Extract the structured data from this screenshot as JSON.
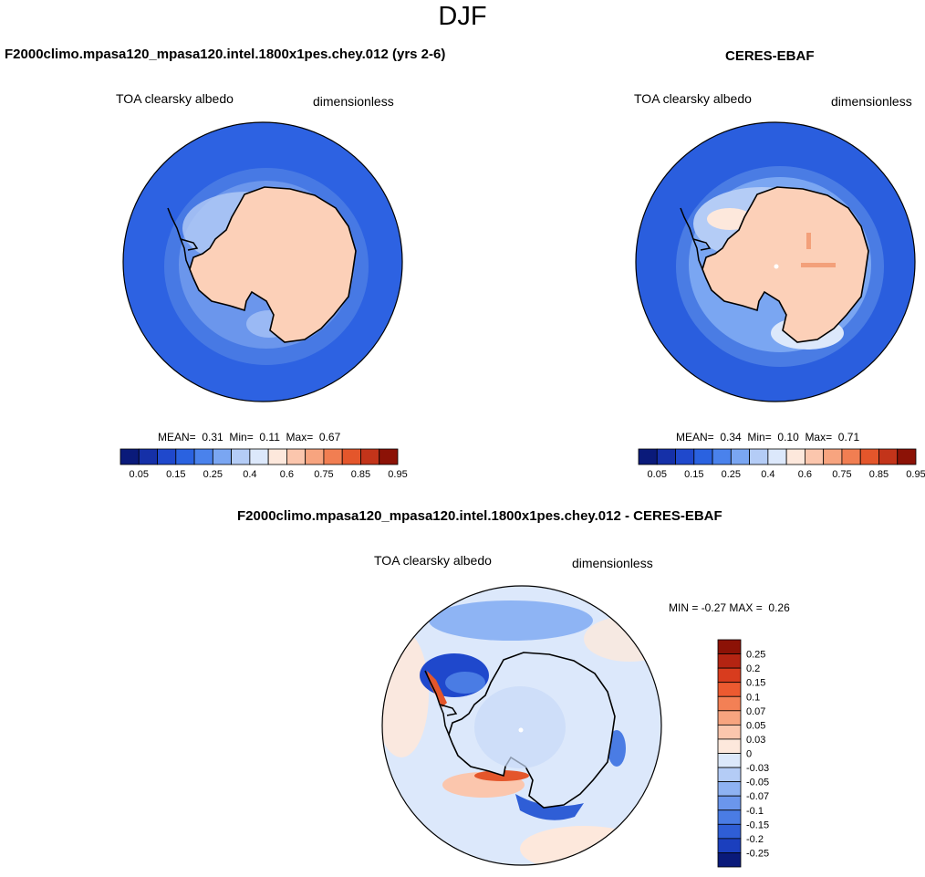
{
  "title": "DJF",
  "panels": [
    {
      "id": "model",
      "case_name": "F2000climo.mpasa120_mpasa120.intel.1800x1pes.chey.012 (yrs 2-6)",
      "variable": "TOA clearsky albedo",
      "units": "dimensionless",
      "mean_label": "MEAN=",
      "mean": "0.31",
      "min_label": "Min=",
      "min": "0.11",
      "max_label": "Max=",
      "max": "0.67"
    },
    {
      "id": "obs",
      "case_name": "CERES-EBAF",
      "variable": "TOA clearsky albedo",
      "units": "dimensionless",
      "mean_label": "MEAN=",
      "mean": "0.34",
      "min_label": "Min=",
      "min": "0.10",
      "max_label": "Max=",
      "max": "0.71"
    }
  ],
  "diff_panel": {
    "case_name": "F2000climo.mpasa120_mpasa120.intel.1800x1pes.chey.012 - CERES-EBAF",
    "variable": "TOA clearsky albedo",
    "units": "dimensionless",
    "min_label": "MIN =",
    "min": "-0.27",
    "max_label": "MAX =",
    "max": "0.26"
  },
  "colorbar_abs": {
    "colors": [
      "#0a1a7a",
      "#1530a8",
      "#1f48cc",
      "#2a62e0",
      "#4a82ec",
      "#7aa6f2",
      "#b4ccf6",
      "#dce8fb",
      "#fde8dc",
      "#fbc6ad",
      "#f7a47f",
      "#f17e52",
      "#e4562b",
      "#c3341a",
      "#8c1206"
    ],
    "labels": [
      "0.05",
      "0.15",
      "0.25",
      "0.4",
      "0.6",
      "0.75",
      "0.85",
      "0.95"
    ]
  },
  "colorbar_diff": {
    "colors": [
      "#8c1206",
      "#b42412",
      "#d83c1e",
      "#ec5a30",
      "#f38055",
      "#f7a47f",
      "#fbc6ad",
      "#fde8dc",
      "#dce8fb",
      "#b4ccf6",
      "#8eb2f2",
      "#6b96ec",
      "#4a7ce4",
      "#2f5ed6",
      "#1b3fbe",
      "#0a1a7a"
    ],
    "labels": [
      "0.25",
      "0.2",
      "0.15",
      "0.1",
      "0.07",
      "0.05",
      "0.03",
      "0",
      "-0.03",
      "-0.05",
      "-0.07",
      "-0.1",
      "-0.15",
      "-0.2",
      "-0.25"
    ]
  },
  "map_colors": {
    "ocean_model": "#2d62e2",
    "ocean_obs": "#2a5ede",
    "ice": "#fcd0b8",
    "diff_background": "#dce8fb",
    "coast": "#000000"
  }
}
